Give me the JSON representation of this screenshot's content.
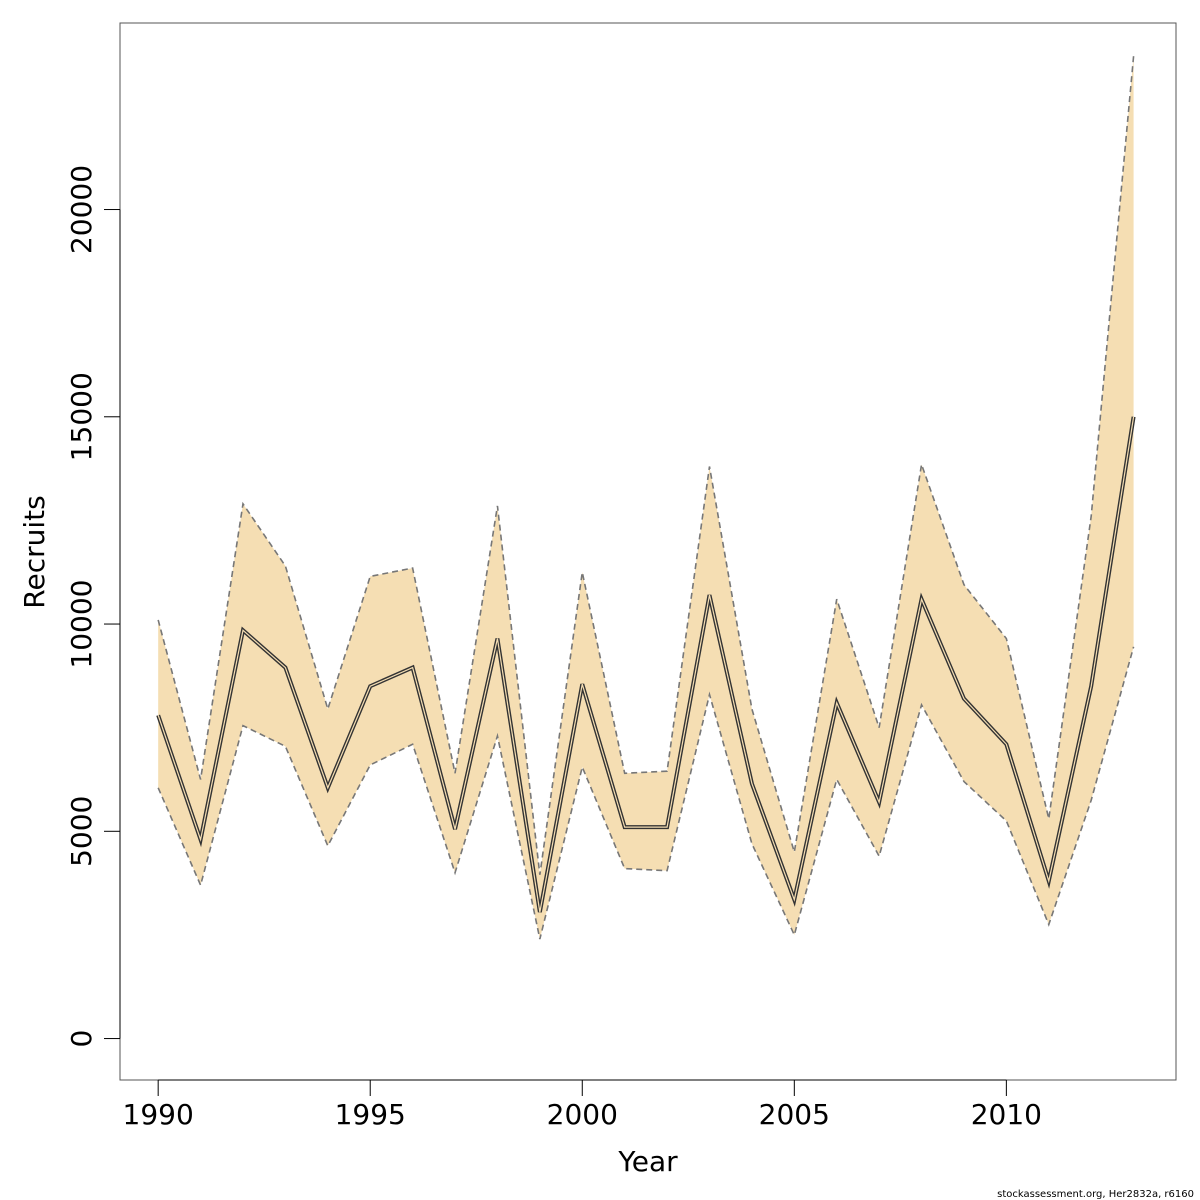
{
  "chart_data": {
    "type": "line",
    "title": "",
    "xlabel": "Year",
    "ylabel": "Recruits",
    "xlim": [
      1989.1,
      2014.0
    ],
    "ylim": [
      -1000,
      24500
    ],
    "x_ticks": [
      1990,
      1995,
      2000,
      2005,
      2010
    ],
    "y_ticks": [
      0,
      5000,
      10000,
      15000,
      20000
    ],
    "grid": false,
    "legend": "none",
    "x": [
      1990,
      1991,
      1992,
      1993,
      1994,
      1995,
      1996,
      1997,
      1998,
      1999,
      2000,
      2001,
      2002,
      2003,
      2004,
      2005,
      2006,
      2007,
      2008,
      2009,
      2010,
      2011,
      2012,
      2013
    ],
    "series": [
      {
        "role": "estimate",
        "values": [
          7800,
          4800,
          9850,
          8950,
          6050,
          8500,
          8950,
          5050,
          9650,
          3050,
          8550,
          5100,
          5100,
          10700,
          6150,
          3350,
          8100,
          5700,
          10600,
          8200,
          7100,
          3800,
          8500,
          15000
        ]
      },
      {
        "role": "upper",
        "values": [
          10100,
          6250,
          12900,
          11400,
          7950,
          11150,
          11350,
          6400,
          12850,
          3950,
          11250,
          6400,
          6450,
          13800,
          7950,
          4500,
          10600,
          7500,
          13850,
          10950,
          9650,
          5300,
          12600,
          23700
        ]
      },
      {
        "role": "lower",
        "values": [
          6050,
          3700,
          7550,
          7050,
          4650,
          6600,
          7100,
          4000,
          7300,
          2400,
          6550,
          4100,
          4050,
          8300,
          4700,
          2500,
          6250,
          4400,
          8050,
          6200,
          5250,
          2750,
          5750,
          9450
        ]
      }
    ],
    "colors": {
      "band_fill": "#f5deb3",
      "band_edge": "#777777",
      "line": "#333333",
      "axis": "#000000",
      "box": "#555555"
    }
  },
  "credit": "stockassessment.org, Her2832a, r6160"
}
